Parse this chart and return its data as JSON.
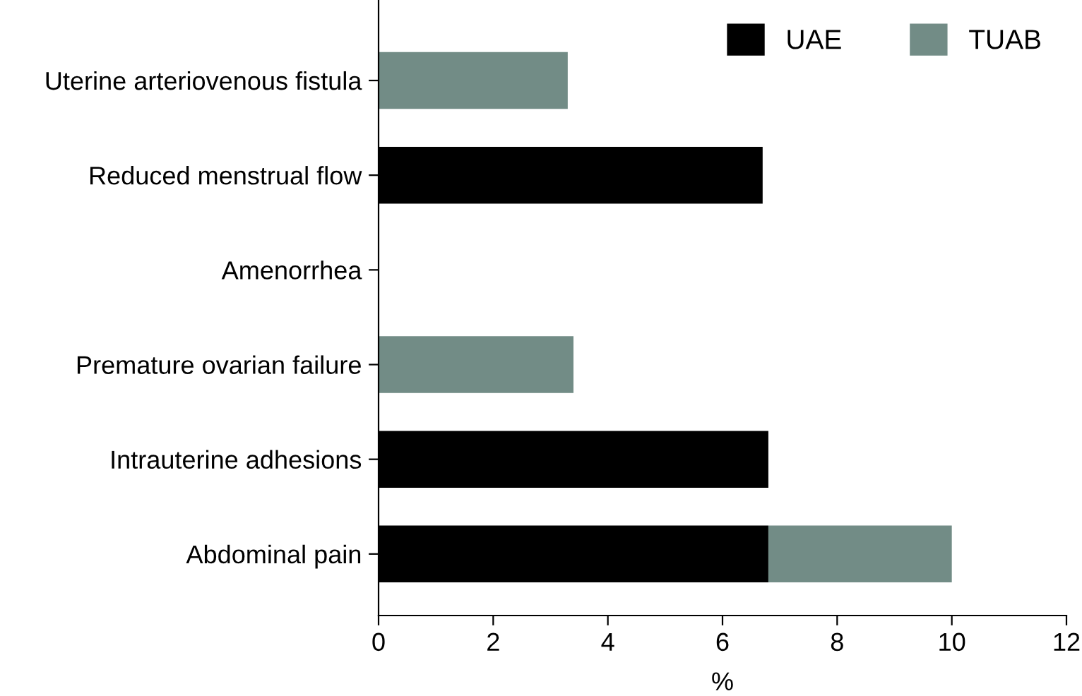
{
  "chart_data": {
    "type": "bar",
    "orientation": "horizontal",
    "stacked": true,
    "xlabel": "%",
    "categories": [
      "Uterine arteriovenous fistula",
      "Reduced menstrual flow",
      "Amenorrhea",
      "Premature ovarian failure",
      "Intrauterine adhesions",
      "Abdominal pain"
    ],
    "series": [
      {
        "name": "UAE",
        "color": "#000000",
        "values": [
          0,
          6.7,
          0,
          0,
          6.8,
          6.8
        ]
      },
      {
        "name": "TUAB",
        "color": "#728c86",
        "values": [
          3.3,
          0,
          0,
          3.4,
          0,
          3.2
        ]
      }
    ],
    "xlim": [
      0,
      12
    ],
    "xticks": [
      0,
      2,
      4,
      6,
      8,
      10,
      12
    ],
    "grid": false,
    "legend": "top right"
  }
}
